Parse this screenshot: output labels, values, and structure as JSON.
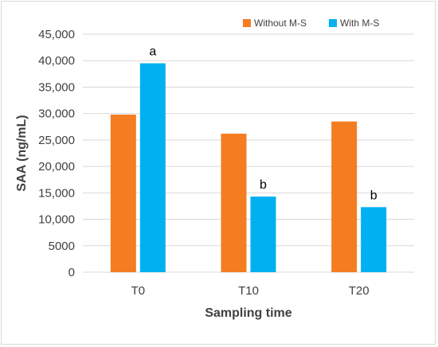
{
  "chart_data": {
    "type": "bar",
    "categories": [
      "T0",
      "T10",
      "T20"
    ],
    "series": [
      {
        "name": "Without M-S",
        "color": "#f47d22",
        "values": [
          29800,
          26200,
          28500
        ]
      },
      {
        "name": "With M-S",
        "color": "#00b0f0",
        "values": [
          39500,
          14300,
          12300
        ]
      }
    ],
    "annotations": [
      {
        "category": "T0",
        "series": "With M-S",
        "text": "a"
      },
      {
        "category": "T10",
        "series": "With M-S",
        "text": "b"
      },
      {
        "category": "T20",
        "series": "With M-S",
        "text": "b"
      }
    ],
    "xlabel": "Sampling time",
    "ylabel": "SAA (ng/mL)",
    "ylim": [
      0,
      45000
    ],
    "yticks": [
      0,
      5000,
      10000,
      15000,
      20000,
      25000,
      30000,
      35000,
      40000,
      45000
    ],
    "ytick_labels": [
      "0",
      "5000",
      "10,000",
      "15,000",
      "20,000",
      "25,000",
      "30,000",
      "35,000",
      "40,000",
      "45,000"
    ],
    "grid": true,
    "legend_position": "top-right"
  }
}
